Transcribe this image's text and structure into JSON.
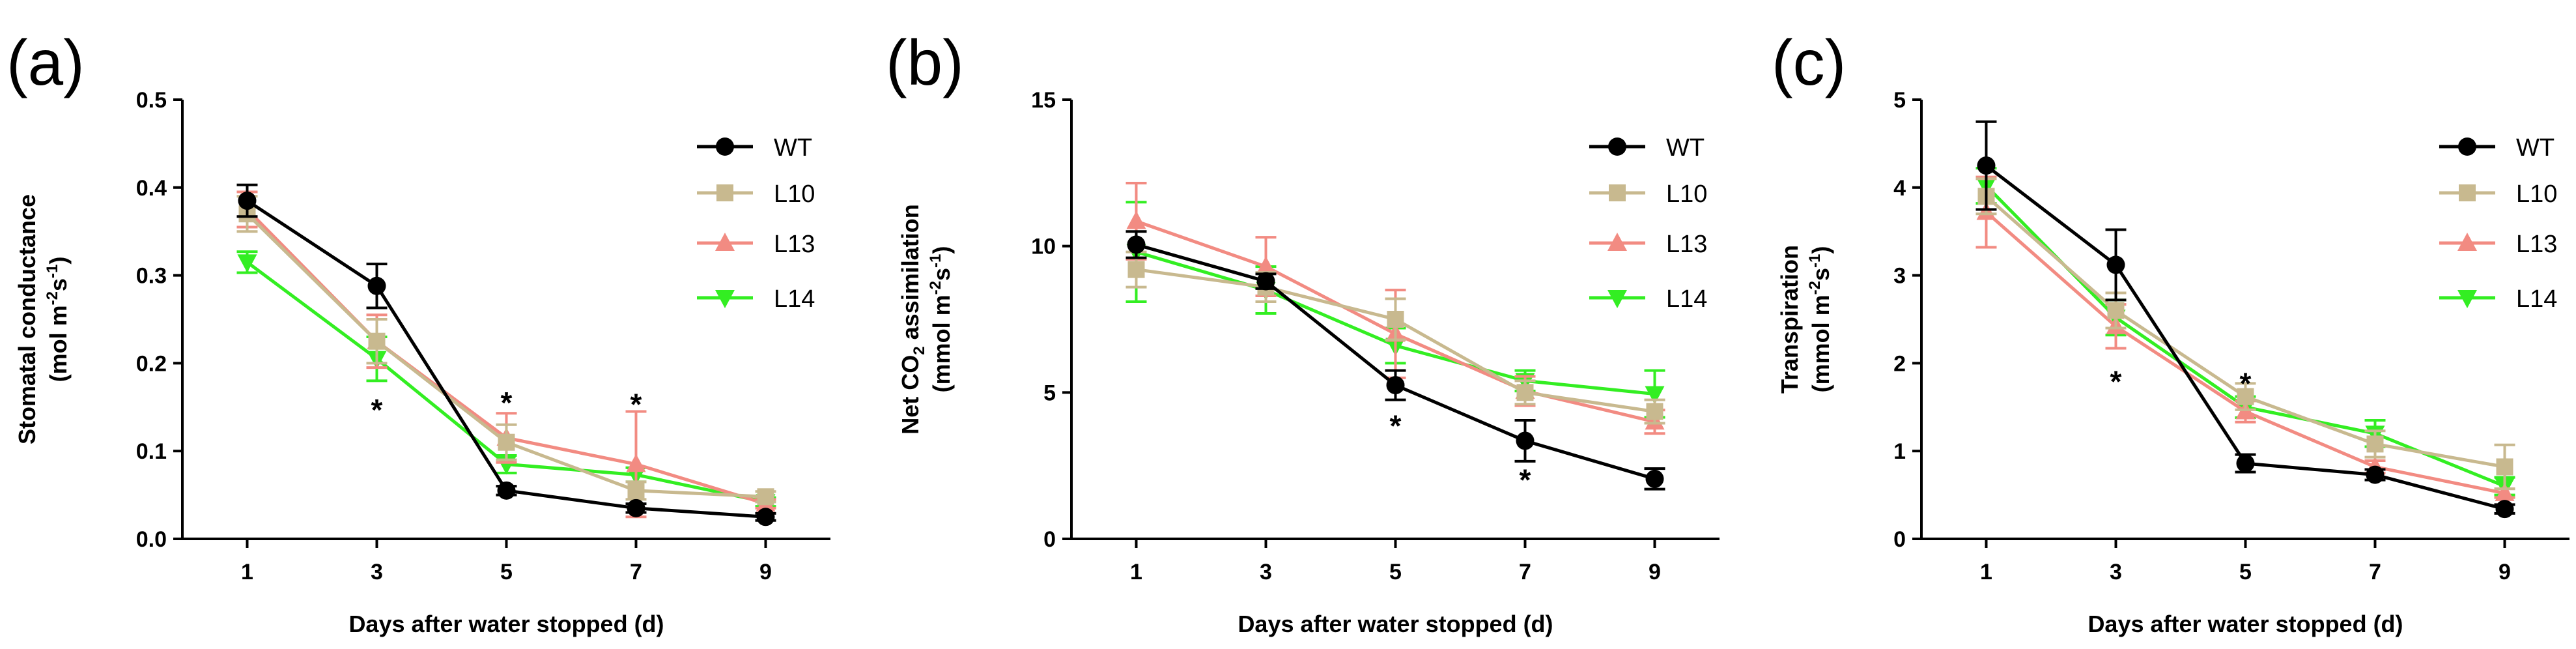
{
  "colors": {
    "WT": "#000000",
    "L10": "#c8b98f",
    "L13": "#f28b82",
    "L14": "#33ee22"
  },
  "chart_data": [
    {
      "panel": "(a)",
      "type": "line",
      "xlabel": "Days after water stopped (d)",
      "ylabel_line1": "Stomatal conductance",
      "ylabel_line2": "(mol m",
      "ylabel_sup1": "-2",
      "ylabel_mid": "s",
      "ylabel_sup2": "-1",
      "ylabel_end": ")",
      "x": [
        1,
        3,
        5,
        7,
        9
      ],
      "xticks": [
        "1",
        "3",
        "5",
        "7",
        "9"
      ],
      "ylim": [
        0,
        0.5
      ],
      "yticks": [
        "0.0",
        "0.1",
        "0.2",
        "0.3",
        "0.4",
        "0.5"
      ],
      "series": [
        {
          "name": "WT",
          "marker": "circle",
          "values": [
            0.385,
            0.288,
            0.055,
            0.035,
            0.025
          ],
          "errors": [
            0.018,
            0.025,
            0.005,
            0.005,
            0.004
          ]
        },
        {
          "name": "L10",
          "marker": "square",
          "values": [
            0.37,
            0.225,
            0.11,
            0.055,
            0.048
          ],
          "errors": [
            0.02,
            0.025,
            0.02,
            0.01,
            0.006
          ]
        },
        {
          "name": "L13",
          "marker": "triangle-up",
          "values": [
            0.375,
            0.225,
            0.115,
            0.085,
            0.04
          ],
          "errors": [
            0.02,
            0.03,
            0.028,
            0.06,
            0.005
          ]
        },
        {
          "name": "L14",
          "marker": "triangle-down",
          "values": [
            0.315,
            0.205,
            0.085,
            0.073,
            0.042
          ],
          "errors": [
            0.012,
            0.025,
            0.01,
            0.008,
            0.005
          ]
        }
      ],
      "stars": [
        {
          "x": 3,
          "y": 0.15,
          "text": "*"
        },
        {
          "x": 5,
          "y": 0.158,
          "text": "*"
        },
        {
          "x": 7,
          "y": 0.156,
          "text": "*"
        }
      ]
    },
    {
      "panel": "(b)",
      "type": "line",
      "xlabel": "Days after water stopped (d)",
      "ylabel_line1": "Net CO",
      "ylabel_sub": "2",
      "ylabel_line1b": " assimilation",
      "ylabel_line2": "(mmol m",
      "ylabel_sup1": "-2",
      "ylabel_mid": "s",
      "ylabel_sup2": "-1",
      "ylabel_end": ")",
      "x": [
        1,
        3,
        5,
        7,
        9
      ],
      "xticks": [
        "1",
        "3",
        "5",
        "7",
        "9"
      ],
      "ylim": [
        0,
        15
      ],
      "yticks": [
        "0",
        "5",
        "10",
        "15"
      ],
      "series": [
        {
          "name": "WT",
          "marker": "circle",
          "values": [
            10.05,
            8.8,
            5.25,
            3.35,
            2.05
          ],
          "errors": [
            0.45,
            0.25,
            0.5,
            0.7,
            0.35
          ]
        },
        {
          "name": "L10",
          "marker": "square",
          "values": [
            9.2,
            8.6,
            7.5,
            5.0,
            4.35
          ],
          "errors": [
            0.6,
            0.5,
            0.7,
            0.4,
            0.4
          ]
        },
        {
          "name": "L13",
          "marker": "triangle-up",
          "values": [
            10.85,
            9.3,
            7.0,
            5.05,
            4.0
          ],
          "errors": [
            1.3,
            1.0,
            1.5,
            0.5,
            0.4
          ]
        },
        {
          "name": "L14",
          "marker": "triangle-down",
          "values": [
            9.8,
            8.5,
            6.6,
            5.4,
            4.95
          ],
          "errors": [
            1.7,
            0.8,
            0.6,
            0.35,
            0.8
          ]
        }
      ],
      "stars": [
        {
          "x": 5,
          "y": 3.95,
          "text": "*"
        },
        {
          "x": 7,
          "y": 2.1,
          "text": "*"
        }
      ]
    },
    {
      "panel": "(c)",
      "type": "line",
      "xlabel": "Days after water stopped (d)",
      "ylabel_line1": "Transpiration",
      "ylabel_line2": "(mmol m",
      "ylabel_sup1": "-2",
      "ylabel_mid": "s",
      "ylabel_sup2": "-1",
      "ylabel_end": ")",
      "x": [
        1,
        3,
        5,
        7,
        9
      ],
      "xticks": [
        "1",
        "3",
        "5",
        "7",
        "9"
      ],
      "ylim": [
        0,
        5
      ],
      "yticks": [
        "0",
        "1",
        "2",
        "3",
        "4",
        "5"
      ],
      "series": [
        {
          "name": "WT",
          "marker": "circle",
          "values": [
            4.25,
            3.12,
            0.86,
            0.73,
            0.34
          ],
          "errors": [
            0.5,
            0.4,
            0.1,
            0.06,
            0.05
          ]
        },
        {
          "name": "L10",
          "marker": "square",
          "values": [
            3.9,
            2.6,
            1.62,
            1.08,
            0.82
          ],
          "errors": [
            0.2,
            0.2,
            0.15,
            0.15,
            0.25
          ]
        },
        {
          "name": "L13",
          "marker": "triangle-up",
          "values": [
            3.72,
            2.42,
            1.45,
            0.82,
            0.52
          ],
          "errors": [
            0.4,
            0.25,
            0.12,
            0.07,
            0.05
          ]
        },
        {
          "name": "L14",
          "marker": "triangle-down",
          "values": [
            4.02,
            2.52,
            1.5,
            1.2,
            0.6
          ],
          "errors": [
            0.2,
            0.2,
            0.12,
            0.15,
            0.1
          ]
        }
      ],
      "stars": [
        {
          "x": 3,
          "y": 1.82,
          "text": "*"
        },
        {
          "x": 5,
          "y": 1.8,
          "text": "*"
        }
      ]
    }
  ]
}
